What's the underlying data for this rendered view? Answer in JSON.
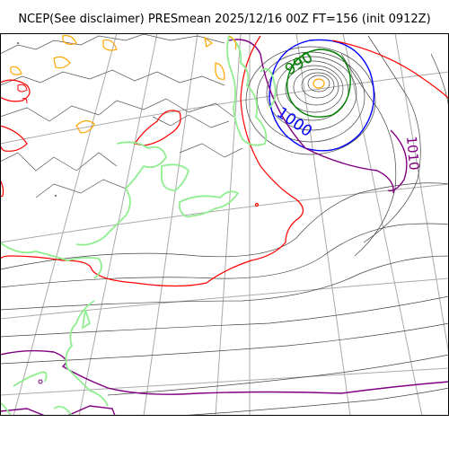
{
  "title": "NCEP(See disclaimer) PRESmean 2025/12/16 00Z FT=156 (init 0912Z)",
  "contour_labels": {
    "low_990": "990",
    "label_1000": "1000",
    "label_1010": "1010"
  },
  "colors": {
    "frame": "#000000",
    "grid": "#aaaaaa",
    "coast": "#555555",
    "isobar_thin": "#444444",
    "isobar_990": "#008000",
    "isobar_1000": "#0000ff",
    "isobar_1010": "#800080",
    "isobar_1020": "#ff0000",
    "freezing_contour": "#90ee90",
    "snow_contour": "#ffa500",
    "high_terrain": "#ff0000"
  }
}
